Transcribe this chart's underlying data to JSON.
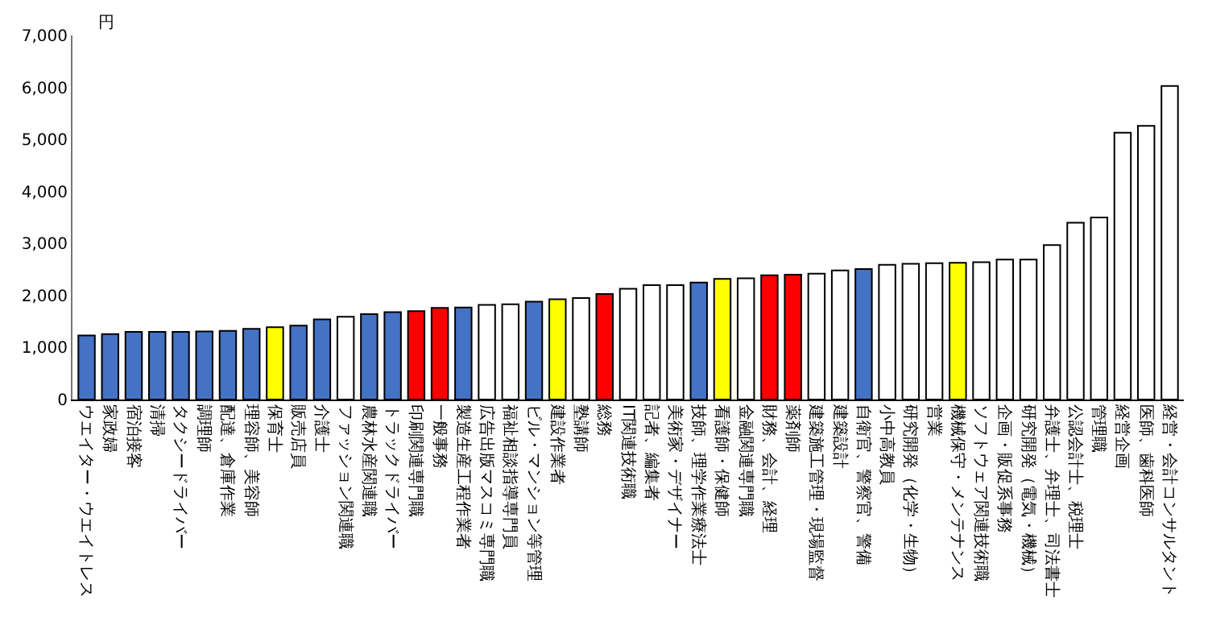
{
  "chart_data": {
    "type": "bar",
    "ylabel": "円",
    "categories": [
      "ウエイター・ウエイトレス",
      "家政婦",
      "宿泊接客",
      "清掃",
      "タクシードライバー",
      "調理師",
      "配達、倉庫作業",
      "理容師、美容師",
      "保育士",
      "販売店員",
      "介護士",
      "ファッション関連職",
      "農林水産関連職",
      "トラックドライバー",
      "印刷関連専門職",
      "一般事務",
      "製造生産工程作業者",
      "広告出版マスコミ専門職",
      "福祉相談指導専門員",
      "ビル・マンション等管理",
      "建設作業者",
      "塾講師",
      "総務",
      "IT関連技術職",
      "記者、編集者",
      "美術家・デザイナー",
      "技師、理学作業療法士",
      "看護師・保健師",
      "金融関連専門職",
      "財務、会計、経理",
      "薬剤師",
      "建築施工管理・現場監督",
      "建築設計",
      "自衛官、警察官、警備",
      "小中高教員",
      "研究開発（化学・生物）",
      "営業",
      "機械保守・メンテナンス",
      "ソフトウェア関連技術職",
      "企画・販促系事務",
      "研究開発（電気・機械）",
      "弁護士、弁理士、司法書士",
      "公認会計士、税理士",
      "管理職",
      "経営企画",
      "医師、歯科医師",
      "経営・会計コンサルタント"
    ],
    "values": [
      1230,
      1260,
      1300,
      1300,
      1300,
      1310,
      1320,
      1360,
      1390,
      1420,
      1540,
      1590,
      1640,
      1680,
      1700,
      1760,
      1770,
      1820,
      1830,
      1880,
      1930,
      1950,
      2030,
      2130,
      2200,
      2200,
      2250,
      2320,
      2330,
      2390,
      2400,
      2420,
      2480,
      2510,
      2590,
      2610,
      2620,
      2630,
      2640,
      2690,
      2690,
      2970,
      3400,
      3500,
      5130,
      5260,
      6030
    ],
    "colors": [
      "#4472c4",
      "#4472c4",
      "#4472c4",
      "#4472c4",
      "#4472c4",
      "#4472c4",
      "#4472c4",
      "#4472c4",
      "#ffff00",
      "#4472c4",
      "#4472c4",
      "#ffffff",
      "#4472c4",
      "#4472c4",
      "#ff0000",
      "#ff0000",
      "#4472c4",
      "#ffffff",
      "#ffffff",
      "#4472c4",
      "#ffff00",
      "#ffffff",
      "#ff0000",
      "#ffffff",
      "#ffffff",
      "#ffffff",
      "#4472c4",
      "#ffff00",
      "#ffffff",
      "#ff0000",
      "#ff0000",
      "#ffffff",
      "#ffffff",
      "#4472c4",
      "#ffffff",
      "#ffffff",
      "#ffffff",
      "#ffff00",
      "#ffffff",
      "#ffffff",
      "#ffffff",
      "#ffffff",
      "#ffffff",
      "#ffffff",
      "#ffffff",
      "#ffffff",
      "#ffffff"
    ],
    "ylim": [
      0,
      7000
    ],
    "yticks": [
      0,
      {
        "value": 1000,
        "label": "1,000"
      },
      {
        "value": 2000,
        "label": "2,000"
      },
      {
        "value": 3000,
        "label": "3,000"
      },
      {
        "value": 4000,
        "label": "4,000"
      },
      {
        "value": 5000,
        "label": "5,000"
      },
      {
        "value": 6000,
        "label": "6,000"
      },
      {
        "value": 7000,
        "label": "7,000"
      }
    ],
    "grid": false
  }
}
